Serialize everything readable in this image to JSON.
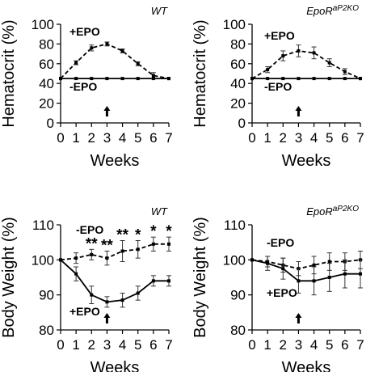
{
  "chart_data": [
    {
      "type": "line",
      "panel_label": "WT",
      "panel_label_sup": "",
      "xlabel": "Weeks",
      "ylabel": "Hematocrit (%)",
      "xlim": [
        0,
        7
      ],
      "ylim": [
        0,
        100
      ],
      "x_ticks": [
        0,
        1,
        2,
        3,
        4,
        5,
        6,
        7
      ],
      "y_ticks": [
        0,
        20,
        40,
        60,
        80,
        100
      ],
      "x": [
        0,
        1,
        2,
        3,
        4,
        5,
        6,
        7
      ],
      "series": [
        {
          "name": "+EPO",
          "style": "dashed",
          "values": [
            45,
            61,
            76,
            80,
            73,
            60,
            48,
            45
          ],
          "errors": [
            0,
            2,
            3,
            2,
            2,
            2,
            3,
            0
          ]
        },
        {
          "name": "-EPO",
          "style": "solid",
          "values": [
            45,
            45,
            45,
            45,
            45,
            45,
            45,
            45
          ],
          "errors": [
            0,
            0.5,
            0.5,
            0.5,
            0.5,
            0.5,
            0.5,
            0
          ]
        }
      ],
      "arrow_at_week": 3,
      "significance": []
    },
    {
      "type": "line",
      "panel_label": "EpoR",
      "panel_label_sup": "aP2KO",
      "xlabel": "Weeks",
      "ylabel": "Hematocrit (%)",
      "xlim": [
        0,
        7
      ],
      "ylim": [
        0,
        100
      ],
      "x_ticks": [
        0,
        1,
        2,
        3,
        4,
        5,
        6,
        7
      ],
      "y_ticks": [
        0,
        20,
        40,
        60,
        80,
        100
      ],
      "x": [
        0,
        1,
        2,
        3,
        4,
        5,
        6,
        7
      ],
      "series": [
        {
          "name": "+EPO",
          "style": "dashed",
          "values": [
            45,
            54,
            68,
            73,
            71,
            61,
            52,
            45
          ],
          "errors": [
            0,
            3,
            5,
            6,
            6,
            4,
            3,
            0
          ]
        },
        {
          "name": "-EPO",
          "style": "solid",
          "values": [
            45,
            45,
            45,
            45,
            45,
            45,
            45,
            45
          ],
          "errors": [
            0,
            0.5,
            0.5,
            0.5,
            0.5,
            0.5,
            0.5,
            0
          ]
        }
      ],
      "arrow_at_week": 3,
      "significance": []
    },
    {
      "type": "line",
      "panel_label": "WT",
      "panel_label_sup": "",
      "xlabel": "Weeks",
      "ylabel": "Body Weight (%)",
      "xlim": [
        0,
        7
      ],
      "ylim": [
        80,
        110
      ],
      "x_ticks": [
        0,
        1,
        2,
        3,
        4,
        5,
        6,
        7
      ],
      "y_ticks": [
        80,
        90,
        100,
        110
      ],
      "x": [
        0,
        1,
        2,
        3,
        4,
        5,
        6,
        7
      ],
      "series": [
        {
          "name": "-EPO",
          "style": "dashed",
          "values": [
            100,
            100.5,
            101.5,
            100.5,
            102.5,
            103,
            104.5,
            104.5
          ],
          "errors": [
            0,
            1.5,
            1.5,
            2,
            3,
            2.5,
            2,
            2
          ]
        },
        {
          "name": "+EPO",
          "style": "solid",
          "values": [
            100,
            96,
            90,
            88,
            88.5,
            90.5,
            94,
            94
          ],
          "errors": [
            0,
            2,
            2.5,
            1.5,
            2,
            2,
            1.5,
            1.5
          ]
        }
      ],
      "arrow_at_week": 3,
      "significance": [
        {
          "x": 2,
          "label": "**"
        },
        {
          "x": 3,
          "label": "**"
        },
        {
          "x": 4,
          "label": "**"
        },
        {
          "x": 5,
          "label": "*"
        },
        {
          "x": 6,
          "label": "*"
        },
        {
          "x": 7,
          "label": "*"
        }
      ]
    },
    {
      "type": "line",
      "panel_label": "EpoR",
      "panel_label_sup": "aP2KO",
      "xlabel": "Weeks",
      "ylabel": "Body Weight (%)",
      "xlim": [
        0,
        7
      ],
      "ylim": [
        80,
        110
      ],
      "x_ticks": [
        0,
        1,
        2,
        3,
        4,
        5,
        6,
        7
      ],
      "y_ticks": [
        80,
        90,
        100,
        110
      ],
      "x": [
        0,
        1,
        2,
        3,
        4,
        5,
        6,
        7
      ],
      "series": [
        {
          "name": "-EPO",
          "style": "dashed",
          "values": [
            100,
            99.5,
            98.5,
            97.5,
            98.5,
            99.5,
            99.5,
            100
          ],
          "errors": [
            0,
            1.5,
            2,
            2,
            2.5,
            2.5,
            2.5,
            2.5
          ]
        },
        {
          "name": "+EPO",
          "style": "solid",
          "values": [
            100,
            99,
            97.5,
            94,
            94,
            95,
            96,
            96
          ],
          "errors": [
            0,
            2,
            3,
            3.5,
            4,
            4,
            4,
            4
          ]
        }
      ],
      "arrow_at_week": 3,
      "significance": []
    }
  ]
}
